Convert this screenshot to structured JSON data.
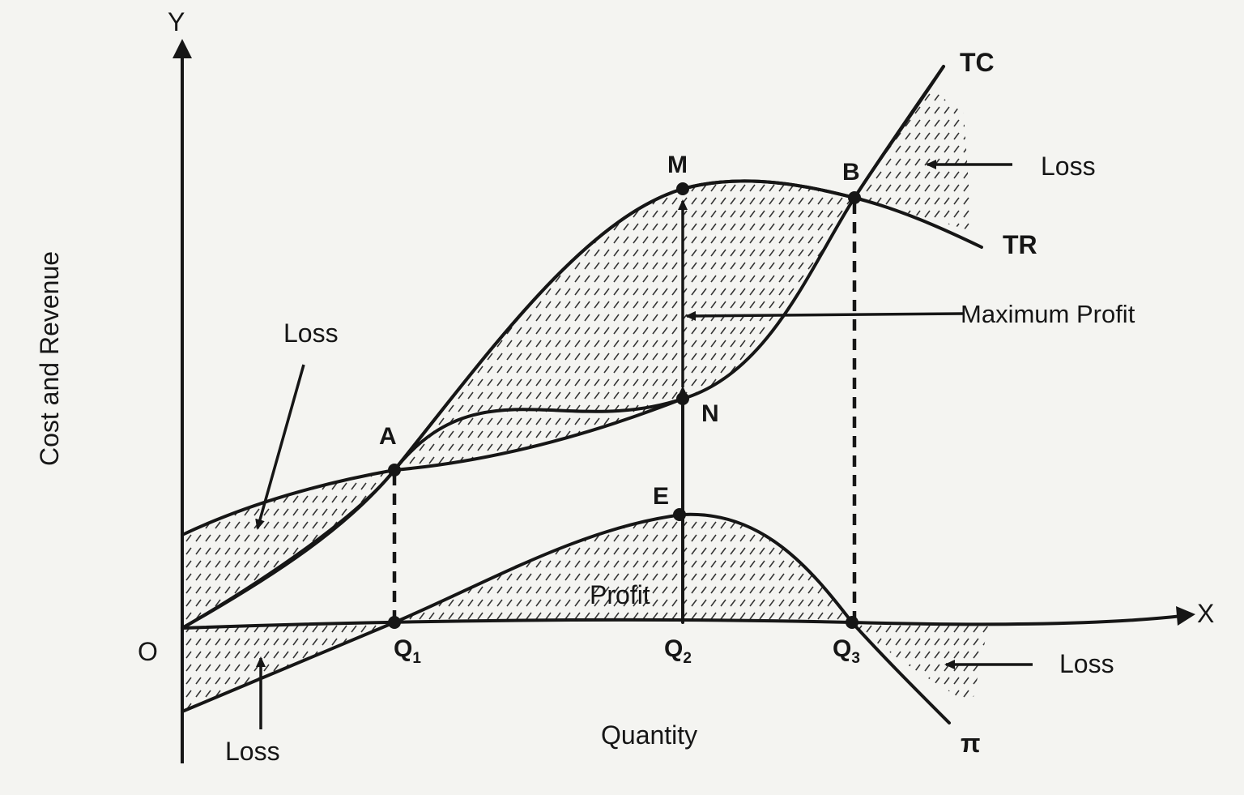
{
  "axes": {
    "y_label": "Cost and Revenue",
    "y_letter": "Y",
    "x_label": "Quantity",
    "x_letter": "X",
    "origin": "O"
  },
  "curves": {
    "tc": "TC",
    "tr": "TR",
    "profit": "π"
  },
  "points": {
    "a": "A",
    "b": "B",
    "m": "M",
    "n": "N",
    "e": "E"
  },
  "quantities": {
    "q1": "Q",
    "q1_sub": "1",
    "q2": "Q",
    "q2_sub": "2",
    "q3": "Q",
    "q3_sub": "3"
  },
  "annotations": {
    "loss_top_left": "Loss",
    "loss_top_right": "Loss",
    "loss_bottom_left": "Loss",
    "loss_bottom_right": "Loss",
    "max_profit": "Maximum Profit",
    "profit": "Profit"
  }
}
